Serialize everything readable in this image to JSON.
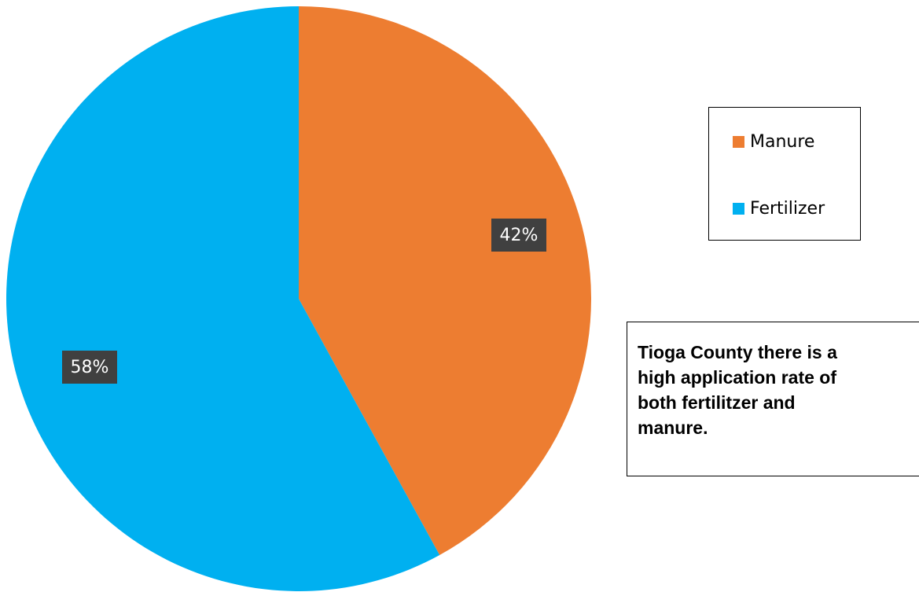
{
  "chart_data": {
    "type": "pie",
    "title": "",
    "categories": [
      "Manure",
      "Fertilizer"
    ],
    "values": [
      42,
      58
    ],
    "value_unit": "%",
    "data_labels": [
      "42%",
      "58%"
    ],
    "colors": [
      "#ED7D31",
      "#00B0F0"
    ],
    "start_angle": "12 o'clock, clockwise",
    "legend": {
      "placement": "right",
      "entries": [
        "Manure",
        "Fertilizer"
      ]
    }
  },
  "note": {
    "text": " Tioga County there is a\nhigh application rate of\nboth fertilitzer and\nmanure."
  },
  "colors": {
    "label_background": "#404040",
    "label_text": "#FFFFFF",
    "border": "#000000"
  }
}
